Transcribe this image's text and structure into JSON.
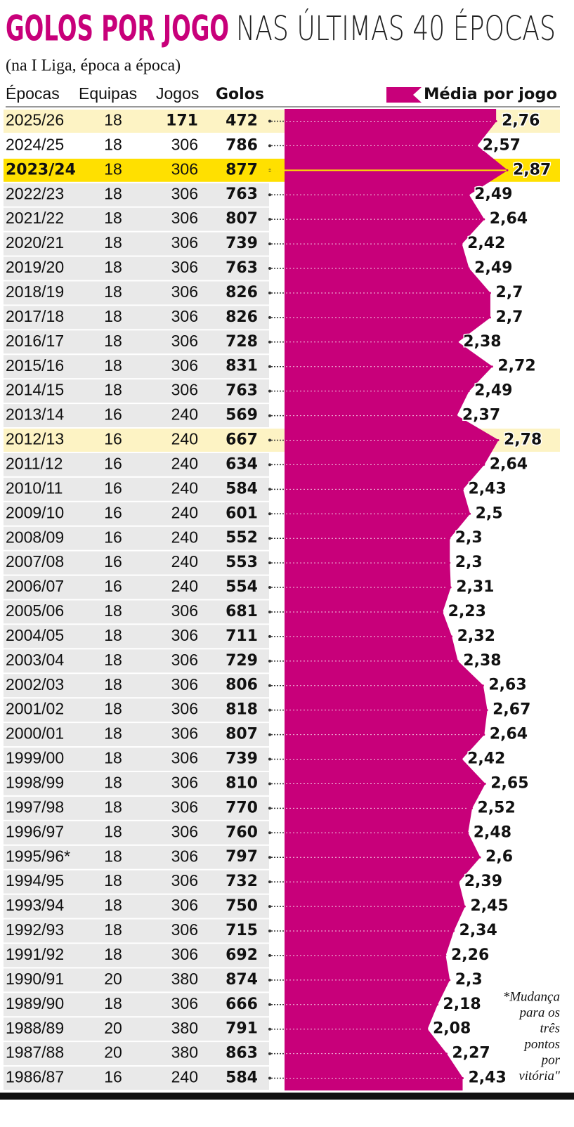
{
  "chart_data": {
    "type": "area",
    "title": "GOLOS POR JOGO",
    "subtitle": "NAS ÚLTIMAS 40 ÉPOCAS",
    "caption": "(na I Liga, época a época)",
    "columns": [
      "Épocas",
      "Equipas",
      "Jogos",
      "Golos"
    ],
    "categories": [
      "2025/26",
      "2024/25",
      "2023/24",
      "2022/23",
      "2021/22",
      "2020/21",
      "2019/20",
      "2018/19",
      "2017/18",
      "2016/17",
      "2015/16",
      "2014/15",
      "2013/14",
      "2012/13",
      "2011/12",
      "2010/11",
      "2009/10",
      "2008/09",
      "2007/08",
      "2006/07",
      "2005/06",
      "2004/05",
      "2003/04",
      "2002/03",
      "2001/02",
      "2000/01",
      "1999/00",
      "1998/99",
      "1997/98",
      "1996/97",
      "1995/96*",
      "1994/95",
      "1993/94",
      "1992/93",
      "1991/92",
      "1990/91",
      "1989/90",
      "1988/89",
      "1987/88",
      "1986/87"
    ],
    "teams": [
      18,
      18,
      18,
      18,
      18,
      18,
      18,
      18,
      18,
      18,
      18,
      18,
      16,
      16,
      16,
      16,
      16,
      16,
      16,
      16,
      18,
      18,
      18,
      18,
      18,
      18,
      18,
      18,
      18,
      18,
      18,
      18,
      18,
      18,
      18,
      20,
      18,
      20,
      20,
      16
    ],
    "games": [
      171,
      306,
      306,
      306,
      306,
      306,
      306,
      306,
      306,
      306,
      306,
      306,
      240,
      240,
      240,
      240,
      240,
      240,
      240,
      240,
      306,
      306,
      306,
      306,
      306,
      306,
      306,
      306,
      306,
      306,
      306,
      306,
      306,
      306,
      306,
      380,
      306,
      380,
      380,
      240
    ],
    "goals": [
      472,
      786,
      877,
      763,
      807,
      739,
      763,
      826,
      826,
      728,
      831,
      763,
      569,
      667,
      634,
      584,
      601,
      552,
      553,
      554,
      681,
      711,
      729,
      806,
      818,
      807,
      739,
      810,
      770,
      760,
      797,
      732,
      750,
      715,
      692,
      874,
      666,
      791,
      863,
      584
    ],
    "series": [
      {
        "name": "Média por jogo",
        "color": "#c8007a",
        "values": [
          2.76,
          2.57,
          2.87,
          2.49,
          2.64,
          2.42,
          2.49,
          2.7,
          2.7,
          2.38,
          2.72,
          2.49,
          2.37,
          2.78,
          2.64,
          2.43,
          2.5,
          2.3,
          2.3,
          2.31,
          2.23,
          2.32,
          2.38,
          2.63,
          2.67,
          2.64,
          2.42,
          2.65,
          2.52,
          2.48,
          2.6,
          2.39,
          2.45,
          2.34,
          2.26,
          2.3,
          2.18,
          2.08,
          2.27,
          2.43
        ],
        "value_labels": [
          "2,76",
          "2,57",
          "2,87",
          "2,49",
          "2,64",
          "2,42",
          "2,49",
          "2,7",
          "2,7",
          "2,38",
          "2,72",
          "2,49",
          "2,37",
          "2,78",
          "2,64",
          "2,43",
          "2,5",
          "2,3",
          "2,3",
          "2,31",
          "2,23",
          "2,32",
          "2,38",
          "2,63",
          "2,67",
          "2,64",
          "2,42",
          "2,65",
          "2,52",
          "2,48",
          "2,6",
          "2,39",
          "2,45",
          "2,34",
          "2,26",
          "2,3",
          "2,18",
          "2,08",
          "2,27",
          "2,43"
        ]
      }
    ],
    "highlight_rows": [
      0,
      13
    ],
    "highlight_color": "#fdf3c4",
    "record_row": 2,
    "record_color": "#ffe000",
    "row_color": "#e9e9e9",
    "note": [
      "*Mudança",
      "para os",
      "três",
      "pontos",
      "por",
      "vitória\""
    ]
  }
}
